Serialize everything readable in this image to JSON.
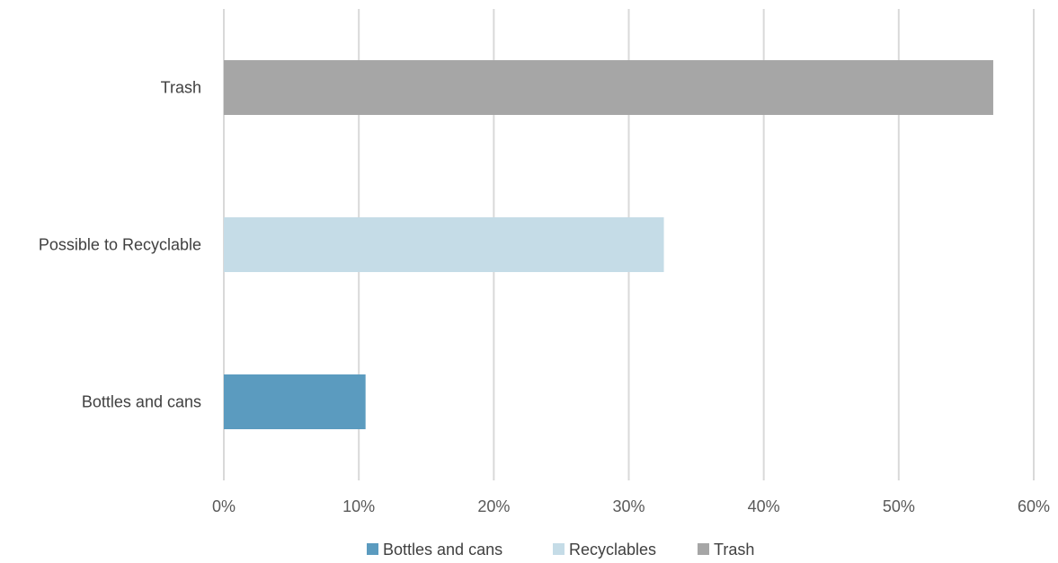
{
  "chart_data": {
    "type": "bar",
    "orientation": "horizontal",
    "categories": [
      "Bottles and cans",
      "Possible to Recyclable",
      "Trash"
    ],
    "values": [
      0.105,
      0.326,
      0.57
    ],
    "xlim": [
      0,
      0.6
    ],
    "x_ticks": [
      "0%",
      "10%",
      "20%",
      "30%",
      "40%",
      "50%",
      "60%"
    ],
    "grid": "vertical",
    "legend_position": "bottom",
    "legend": [
      {
        "label": "Bottles and cans",
        "color": "#5b9bbf"
      },
      {
        "label": "Recyclables",
        "color": "#c5dce7"
      },
      {
        "label": "Trash",
        "color": "#a6a6a6"
      }
    ],
    "bar_colors": [
      "#5b9bbf",
      "#c5dce7",
      "#a6a6a6"
    ],
    "gridline_color": "#d9d9d9"
  }
}
